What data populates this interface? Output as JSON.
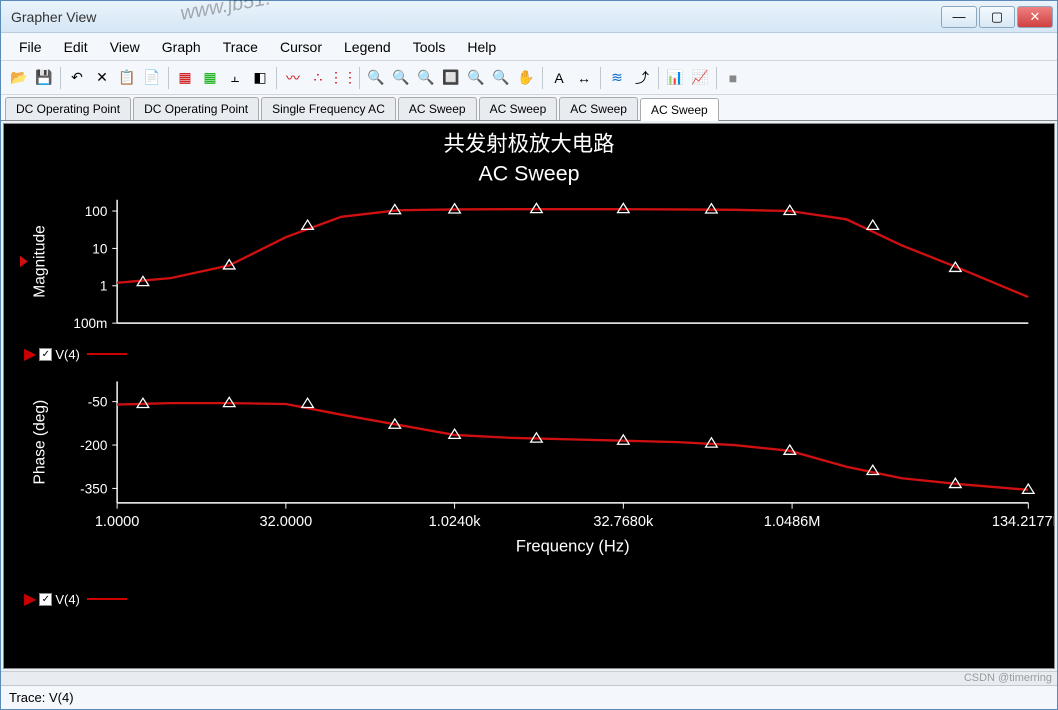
{
  "window": {
    "title": "Grapher View"
  },
  "menu": [
    "File",
    "Edit",
    "View",
    "Graph",
    "Trace",
    "Cursor",
    "Legend",
    "Tools",
    "Help"
  ],
  "tabs": {
    "items": [
      "DC Operating Point",
      "DC Operating Point",
      "Single Frequency AC",
      "AC Sweep",
      "AC Sweep",
      "AC Sweep",
      "AC Sweep"
    ],
    "active": 6
  },
  "status": {
    "text": "Trace: V(4)"
  },
  "watermark": {
    "corner": "www.jb51.",
    "csdn": "CSDN @timerring"
  },
  "chart": {
    "title_cn": "共发射极放大电路",
    "title_en": "AC Sweep",
    "title_fontsize_cn": 22,
    "title_fontsize_en": 22,
    "title_color": "#ffffff",
    "background_color": "#000000",
    "axis_color": "#ffffff",
    "line_color": "#d01010",
    "line_width": 2.4,
    "marker_style": "triangle-open",
    "marker_size": 6,
    "marker_color": "#ffffff",
    "xlabel": "Frequency (Hz)",
    "xlabel_fontsize": 17,
    "x_scale": "log",
    "xlim": [
      1,
      134217700.0
    ],
    "x_tick_labels": [
      "1.0000",
      "32.0000",
      "1.0240k",
      "32.7680k",
      "1.0486M",
      "134.2177M"
    ],
    "x_tick_values": [
      1,
      32,
      1024,
      32768,
      1048600.0,
      134217700.0
    ],
    "panels": {
      "magnitude": {
        "ylabel": "Magnitude",
        "y_scale": "log",
        "ylim": [
          0.1,
          200
        ],
        "y_tick_labels": [
          "100m",
          "1",
          "10",
          "100"
        ],
        "y_tick_values": [
          0.1,
          1,
          10,
          100
        ],
        "data": [
          {
            "x": 1,
            "y": 1.2
          },
          {
            "x": 3,
            "y": 1.6
          },
          {
            "x": 10,
            "y": 3.5
          },
          {
            "x": 32,
            "y": 20
          },
          {
            "x": 100,
            "y": 70
          },
          {
            "x": 320,
            "y": 105
          },
          {
            "x": 1024,
            "y": 110
          },
          {
            "x": 3200,
            "y": 112
          },
          {
            "x": 10000,
            "y": 112
          },
          {
            "x": 32768,
            "y": 112
          },
          {
            "x": 100000,
            "y": 110
          },
          {
            "x": 320000,
            "y": 108
          },
          {
            "x": 1000000.0,
            "y": 100
          },
          {
            "x": 3200000.0,
            "y": 60
          },
          {
            "x": 10000000.0,
            "y": 12
          },
          {
            "x": 32000000.0,
            "y": 3
          },
          {
            "x": 134000000.0,
            "y": 0.5
          }
        ],
        "markers_x": [
          1.7,
          10,
          50,
          300,
          1024,
          5500,
          32768,
          200000,
          1000000.0,
          5500000.0,
          30000000.0
        ],
        "markers_y": [
          1.25,
          3.5,
          40,
          105,
          110,
          112,
          112,
          110,
          100,
          40,
          3
        ]
      },
      "phase": {
        "ylabel": "Phase (deg)",
        "y_scale": "linear",
        "ylim": [
          -400,
          20
        ],
        "y_tick_labels": [
          "-350",
          "-200",
          "-50"
        ],
        "y_tick_values": [
          -350,
          -200,
          -50
        ],
        "data": [
          {
            "x": 1,
            "y": -60
          },
          {
            "x": 3,
            "y": -55
          },
          {
            "x": 10,
            "y": -55
          },
          {
            "x": 32,
            "y": -58
          },
          {
            "x": 100,
            "y": -95
          },
          {
            "x": 320,
            "y": -130
          },
          {
            "x": 1024,
            "y": -165
          },
          {
            "x": 3200,
            "y": -175
          },
          {
            "x": 10000,
            "y": -180
          },
          {
            "x": 32768,
            "y": -185
          },
          {
            "x": 100000,
            "y": -190
          },
          {
            "x": 320000,
            "y": -200
          },
          {
            "x": 1000000.0,
            "y": -220
          },
          {
            "x": 3200000.0,
            "y": -275
          },
          {
            "x": 10000000.0,
            "y": -315
          },
          {
            "x": 32000000.0,
            "y": -335
          },
          {
            "x": 134000000.0,
            "y": -355
          }
        ],
        "markers_x": [
          1.7,
          10,
          50,
          300,
          1024,
          5500,
          32768,
          200000,
          1000000.0,
          5500000.0,
          30000000.0,
          134000000.0
        ],
        "markers_y": [
          -58,
          -55,
          -58,
          -130,
          -165,
          -178,
          -185,
          -195,
          -220,
          -290,
          -335,
          -355
        ]
      }
    },
    "legend_label": "V(4)"
  },
  "toolbar_icons": [
    {
      "n": "open-icon",
      "g": "📂",
      "i": true
    },
    {
      "n": "save-icon",
      "g": "💾",
      "i": true
    },
    {
      "sep": true
    },
    {
      "n": "undo-icon",
      "g": "↶",
      "i": true
    },
    {
      "n": "delete-icon",
      "g": "✕",
      "i": true
    },
    {
      "n": "copy-icon",
      "g": "📋",
      "i": true
    },
    {
      "n": "paste-icon",
      "g": "📄",
      "i": true
    },
    {
      "sep": true
    },
    {
      "n": "grid-red-icon",
      "g": "▦",
      "i": true,
      "c": "#c00"
    },
    {
      "n": "grid-green-icon",
      "g": "▦",
      "i": true,
      "c": "#0a0"
    },
    {
      "n": "axes-icon",
      "g": "⫠",
      "i": true
    },
    {
      "n": "bw-icon",
      "g": "◧",
      "i": true
    },
    {
      "sep": true
    },
    {
      "n": "trace-red-icon",
      "g": "〰",
      "i": true,
      "c": "#c00"
    },
    {
      "n": "scatter-icon",
      "g": "∴",
      "i": true,
      "c": "#c00"
    },
    {
      "n": "markers-icon",
      "g": "⋮⋮",
      "i": true,
      "c": "#c00"
    },
    {
      "sep": true
    },
    {
      "n": "zoom-in-icon",
      "g": "🔍",
      "i": true
    },
    {
      "n": "zoom-out-icon",
      "g": "🔍",
      "i": true
    },
    {
      "n": "zoom-fit-icon",
      "g": "🔍",
      "i": true
    },
    {
      "n": "zoom-area-icon",
      "g": "🔲",
      "i": true
    },
    {
      "n": "zoom-x-icon",
      "g": "🔍",
      "i": true
    },
    {
      "n": "zoom-y-icon",
      "g": "🔍",
      "i": true
    },
    {
      "n": "pan-icon",
      "g": "✋",
      "i": true
    },
    {
      "sep": true
    },
    {
      "n": "text-icon",
      "g": "A",
      "i": true
    },
    {
      "n": "cursor-icon",
      "g": "↔",
      "i": true
    },
    {
      "sep": true
    },
    {
      "n": "overlay-icon",
      "g": "≋",
      "i": true,
      "c": "#06c"
    },
    {
      "n": "export-icon",
      "g": "⤴",
      "i": true
    },
    {
      "sep": true
    },
    {
      "n": "sheet-icon",
      "g": "📊",
      "i": true
    },
    {
      "n": "sheet2-icon",
      "g": "📈",
      "i": true
    },
    {
      "sep": true
    },
    {
      "n": "stop-icon",
      "g": "■",
      "i": true,
      "c": "#888"
    }
  ]
}
